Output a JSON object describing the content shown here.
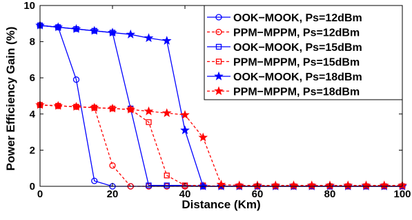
{
  "chart_data": {
    "type": "line",
    "title": "",
    "xlabel": "Distance (Km)",
    "ylabel": "Power Efficiency Gain (%)",
    "xlim": [
      0,
      100
    ],
    "ylim": [
      0,
      10
    ],
    "xticks": [
      0,
      20,
      40,
      60,
      80,
      100
    ],
    "yticks": [
      0,
      2,
      4,
      6,
      8,
      10
    ],
    "xtick_labels": [
      "0",
      "20",
      "40",
      "60",
      "80",
      "100"
    ],
    "ytick_labels": [
      "0",
      "2",
      "4",
      "6",
      "8",
      "10"
    ],
    "grid": false,
    "legend_position": "top-right",
    "series": [
      {
        "name": "OOK−MOOK,  Ps=12dBm",
        "color": "#0000ff",
        "line": "solid",
        "marker": "circle",
        "x": [
          0,
          5,
          10,
          15,
          20,
          25,
          30,
          35,
          40,
          45,
          50,
          55,
          60,
          65,
          70,
          75,
          80,
          85,
          90,
          95,
          100
        ],
        "y": [
          8.9,
          8.8,
          5.9,
          0.3,
          0,
          0,
          0,
          0,
          0,
          0,
          0,
          0,
          0,
          0,
          0,
          0,
          0,
          0,
          0,
          0,
          0
        ]
      },
      {
        "name": "PPM−MPPM,  Ps=12dBm",
        "color": "#ff0000",
        "line": "dashed",
        "marker": "circle",
        "x": [
          0,
          5,
          10,
          15,
          20,
          25,
          30,
          35,
          40,
          45,
          50,
          55,
          60,
          65,
          70,
          75,
          80,
          85,
          90,
          95,
          100
        ],
        "y": [
          4.5,
          4.45,
          4.4,
          4.35,
          1.15,
          0,
          0,
          0,
          0,
          0,
          0,
          0,
          0,
          0,
          0,
          0,
          0,
          0,
          0,
          0,
          0
        ]
      },
      {
        "name": "OOK−MOOK,  Ps=15dBm",
        "color": "#0000ff",
        "line": "solid",
        "marker": "square",
        "x": [
          0,
          5,
          10,
          15,
          20,
          25,
          30,
          35,
          40,
          45,
          50,
          55,
          60,
          65,
          70,
          75,
          80,
          85,
          90,
          95,
          100
        ],
        "y": [
          8.9,
          8.8,
          8.7,
          8.6,
          8.5,
          4.3,
          0.05,
          0.05,
          0.05,
          0,
          0,
          0,
          0,
          0,
          0,
          0,
          0,
          0,
          0,
          0,
          0
        ]
      },
      {
        "name": "PPM−MPPM,  Ps=15dBm",
        "color": "#ff0000",
        "line": "dashed",
        "marker": "square",
        "x": [
          0,
          5,
          10,
          15,
          20,
          25,
          30,
          35,
          40,
          45,
          50,
          55,
          60,
          65,
          70,
          75,
          80,
          85,
          90,
          95,
          100
        ],
        "y": [
          4.5,
          4.45,
          4.4,
          4.35,
          4.3,
          4.25,
          3.55,
          0.6,
          0.05,
          0.05,
          0,
          0,
          0,
          0,
          0,
          0,
          0,
          0,
          0,
          0,
          0
        ]
      },
      {
        "name": "OOK−MOOK,  Ps=18dBm",
        "color": "#0000ff",
        "line": "solid",
        "marker": "star",
        "x": [
          0,
          5,
          10,
          15,
          20,
          25,
          30,
          35,
          40,
          45,
          50,
          55,
          60,
          65,
          70,
          75,
          80,
          85,
          90,
          95,
          100
        ],
        "y": [
          8.9,
          8.8,
          8.7,
          8.6,
          8.5,
          8.4,
          8.2,
          8.05,
          3.1,
          0,
          0,
          0,
          0,
          0,
          0,
          0,
          0,
          0,
          0,
          0,
          0
        ]
      },
      {
        "name": "PPM−MPPM,  Ps=18dBm",
        "color": "#ff0000",
        "line": "dashed",
        "marker": "star",
        "x": [
          0,
          5,
          10,
          15,
          20,
          25,
          30,
          35,
          40,
          45,
          50,
          55,
          60,
          65,
          70,
          75,
          80,
          85,
          90,
          95,
          100
        ],
        "y": [
          4.5,
          4.45,
          4.4,
          4.35,
          4.3,
          4.25,
          4.15,
          4.05,
          3.95,
          2.7,
          0.1,
          0.05,
          0.05,
          0.05,
          0.05,
          0.05,
          0.05,
          0.05,
          0.05,
          0.05,
          0.05
        ]
      }
    ]
  }
}
